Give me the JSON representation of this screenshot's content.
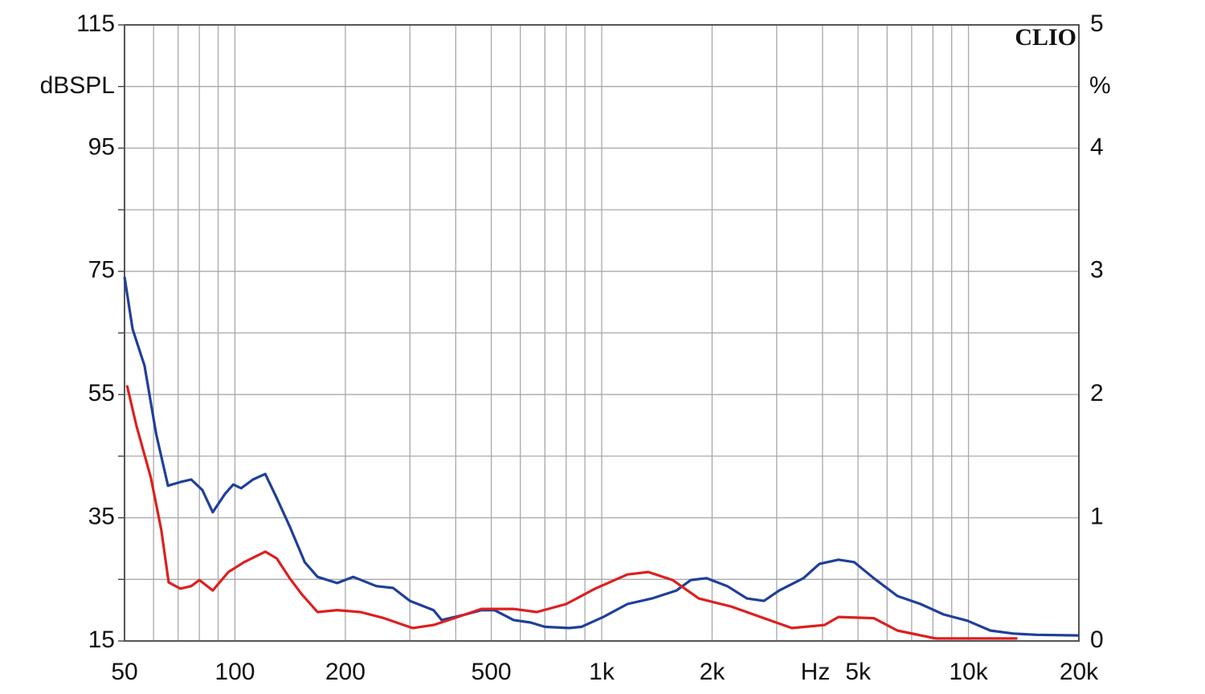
{
  "chart_data": {
    "type": "line",
    "logo": "CLIO",
    "ylabel": "dBSPL",
    "y2label": "%",
    "xunit": "Hz",
    "xscale": "log",
    "xlim": [
      50,
      20000
    ],
    "ylim": [
      15,
      115
    ],
    "y2lim": [
      0,
      5
    ],
    "grid": true,
    "xticks": [
      50,
      100,
      200,
      500,
      {
        "value": 1000,
        "label": "1k"
      },
      {
        "value": 2000,
        "label": "2k"
      },
      {
        "value": 5000,
        "label": "5k"
      },
      {
        "value": 10000,
        "label": "10k"
      },
      {
        "value": 20000,
        "label": "20k"
      }
    ],
    "x_minor_ticks": [
      60,
      70,
      80,
      90,
      300,
      400,
      600,
      700,
      800,
      900,
      3000,
      4000,
      6000,
      7000,
      8000,
      9000
    ],
    "yticks": [
      115,
      95,
      75,
      55,
      35,
      15
    ],
    "y_minor_ticks": [
      105,
      85,
      65,
      45,
      25
    ],
    "y2ticks": [
      5,
      4,
      3,
      2,
      1,
      0
    ],
    "series": [
      {
        "color": "#1f3f9a",
        "x": [
          50,
          52.6,
          56.7,
          61,
          65.7,
          71,
          76,
          81.5,
          87,
          94,
          99,
          104,
          112,
          121,
          130,
          141,
          155,
          168,
          190,
          210,
          243,
          270,
          300,
          348,
          366,
          425,
          470,
          510,
          575,
          640,
          700,
          815,
          880,
          1010,
          1175,
          1370,
          1600,
          1750,
          1930,
          2200,
          2490,
          2770,
          3050,
          3550,
          3920,
          4420,
          4880,
          5520,
          6400,
          7400,
          8560,
          9920,
          11470,
          13270,
          15350,
          20000
        ],
        "values": [
          74.1,
          65.6,
          59.7,
          48.6,
          40.2,
          40.8,
          41.2,
          39.5,
          35.9,
          38.9,
          40.4,
          39.8,
          41.2,
          42.1,
          38.2,
          33.6,
          27.8,
          25.4,
          24.4,
          25.4,
          23.9,
          23.6,
          21.5,
          20.0,
          18.4,
          19.3,
          20.0,
          20.0,
          18.4,
          18.0,
          17.3,
          17.1,
          17.3,
          18.9,
          21.0,
          21.9,
          23.2,
          24.9,
          25.2,
          23.9,
          21.9,
          21.5,
          23.2,
          25.2,
          27.5,
          28.2,
          27.8,
          25.2,
          22.3,
          21.0,
          19.3,
          18.3,
          16.7,
          16.2,
          16.0,
          15.9
        ]
      },
      {
        "color": "#dd1f1f",
        "x": [
          50.8,
          53.9,
          59,
          63,
          66,
          71,
          76,
          80,
          87,
          96,
          106,
          121,
          130,
          141,
          152,
          168,
          190,
          220,
          255,
          305,
          348,
          405,
          470,
          575,
          665,
          800,
          960,
          1175,
          1340,
          1560,
          1840,
          2250,
          2770,
          3300,
          4050,
          4420,
          5520,
          6400,
          8150,
          13600
        ],
        "values": [
          56.5,
          49.9,
          41.5,
          33.0,
          24.5,
          23.5,
          23.9,
          24.9,
          23.2,
          26.2,
          27.8,
          29.5,
          28.4,
          25.2,
          22.6,
          19.7,
          20.0,
          19.7,
          18.7,
          17.1,
          17.6,
          18.9,
          20.2,
          20.2,
          19.7,
          21.0,
          23.5,
          25.8,
          26.2,
          24.9,
          21.9,
          20.6,
          18.7,
          17.1,
          17.6,
          18.9,
          18.7,
          16.7,
          15.4,
          15.4
        ]
      }
    ]
  }
}
